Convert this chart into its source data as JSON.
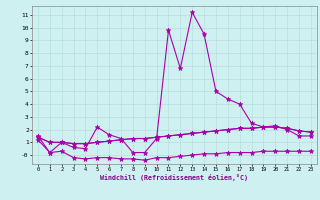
{
  "xlabel": "Windchill (Refroidissement éolien,°C)",
  "background_color": "#cff0f0",
  "grid_color": "#b8dede",
  "line_color": "#aa00aa",
  "xlim": [
    -0.5,
    23.5
  ],
  "ylim": [
    -0.7,
    11.7
  ],
  "yticks": [
    0,
    1,
    2,
    3,
    4,
    5,
    6,
    7,
    8,
    9,
    10,
    11
  ],
  "ytick_labels": [
    "-0",
    "1",
    "2",
    "3",
    "4",
    "5",
    "6",
    "7",
    "8",
    "9",
    "10",
    "11"
  ],
  "xticks": [
    0,
    1,
    2,
    3,
    4,
    5,
    6,
    7,
    8,
    9,
    10,
    11,
    12,
    13,
    14,
    15,
    16,
    17,
    18,
    19,
    20,
    21,
    22,
    23
  ],
  "series": [
    {
      "x": [
        0,
        1,
        2,
        3,
        4,
        5,
        6,
        7,
        8,
        9,
        10,
        11,
        12,
        13,
        14,
        15,
        16,
        17,
        18,
        19,
        20,
        21,
        22,
        23
      ],
      "y": [
        1.5,
        0.2,
        1.0,
        0.6,
        0.5,
        2.2,
        1.6,
        1.3,
        0.2,
        0.2,
        1.3,
        9.8,
        6.8,
        11.2,
        9.5,
        5.0,
        4.4,
        4.0,
        2.5,
        2.2,
        2.3,
        2.0,
        1.5,
        1.5
      ]
    },
    {
      "x": [
        0,
        1,
        2,
        3,
        4,
        5,
        6,
        7,
        8,
        9,
        10,
        11,
        12,
        13,
        14,
        15,
        16,
        17,
        18,
        19,
        20,
        21,
        22,
        23
      ],
      "y": [
        1.4,
        1.0,
        1.0,
        0.9,
        0.9,
        1.0,
        1.1,
        1.2,
        1.3,
        1.3,
        1.4,
        1.5,
        1.6,
        1.7,
        1.8,
        1.9,
        2.0,
        2.1,
        2.1,
        2.2,
        2.2,
        2.1,
        1.9,
        1.8
      ]
    },
    {
      "x": [
        0,
        1,
        2,
        3,
        4,
        5,
        6,
        7,
        8,
        9,
        10,
        11,
        12,
        13,
        14,
        15,
        16,
        17,
        18,
        19,
        20,
        21,
        22,
        23
      ],
      "y": [
        1.4,
        1.0,
        1.0,
        0.9,
        0.9,
        1.0,
        1.1,
        1.2,
        1.3,
        1.3,
        1.4,
        1.5,
        1.6,
        1.7,
        1.8,
        1.9,
        2.0,
        2.1,
        2.1,
        2.2,
        2.2,
        2.1,
        1.9,
        1.8
      ]
    },
    {
      "x": [
        0,
        1,
        2,
        3,
        4,
        5,
        6,
        7,
        8,
        9,
        10,
        11,
        12,
        13,
        14,
        15,
        16,
        17,
        18,
        19,
        20,
        21,
        22,
        23
      ],
      "y": [
        1.2,
        0.2,
        0.3,
        -0.2,
        -0.3,
        -0.2,
        -0.2,
        -0.3,
        -0.3,
        -0.4,
        -0.2,
        -0.2,
        -0.1,
        0.0,
        0.1,
        0.1,
        0.2,
        0.2,
        0.2,
        0.3,
        0.3,
        0.3,
        0.3,
        0.3
      ]
    }
  ]
}
